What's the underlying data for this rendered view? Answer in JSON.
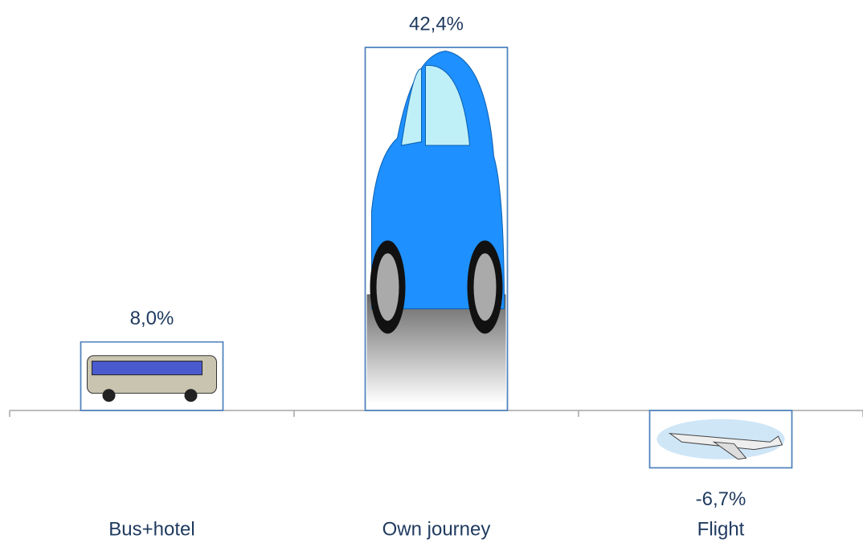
{
  "chart_data": {
    "type": "bar",
    "categories": [
      "Bus+hotel",
      "Own journey",
      "Flight"
    ],
    "values": [
      8.0,
      42.4,
      -6.7
    ],
    "value_labels": [
      "8,0%",
      "42,4%",
      "-6,7%"
    ],
    "color": "#4f81bd"
  }
}
